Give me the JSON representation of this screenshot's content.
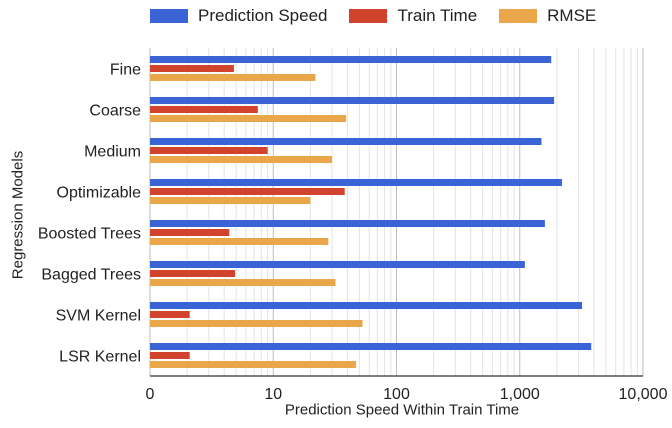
{
  "chart_data": {
    "type": "bar",
    "orientation": "horizontal",
    "x_scale": "log",
    "xlim": [
      1,
      10000
    ],
    "x_ticks": [
      {
        "value": 1,
        "label": "0"
      },
      {
        "value": 10,
        "label": "10"
      },
      {
        "value": 100,
        "label": "100"
      },
      {
        "value": 1000,
        "label": "1,000"
      },
      {
        "value": 10000,
        "label": "10,000"
      }
    ],
    "xlabel": "Prediction Speed Within Train Time",
    "ylabel": "Regression Models",
    "categories": [
      "Fine",
      "Coarse",
      "Medium",
      "Optimizable",
      "Boosted Trees",
      "Bagged Trees",
      "SVM Kernel",
      "LSR Kernel"
    ],
    "series": [
      {
        "name": "Prediction Speed",
        "color": "#3a63d6",
        "values": [
          1800,
          1900,
          1500,
          2200,
          1600,
          1100,
          3200,
          3800
        ]
      },
      {
        "name": "Train Time",
        "color": "#d2432d",
        "values": [
          4.8,
          7.5,
          9,
          38,
          4.4,
          4.9,
          2.1,
          2.1
        ]
      },
      {
        "name": "RMSE",
        "color": "#e9a74a",
        "values": [
          22,
          39,
          30,
          20,
          28,
          32,
          53,
          47
        ]
      }
    ],
    "legend_position": "top",
    "grid": true
  }
}
